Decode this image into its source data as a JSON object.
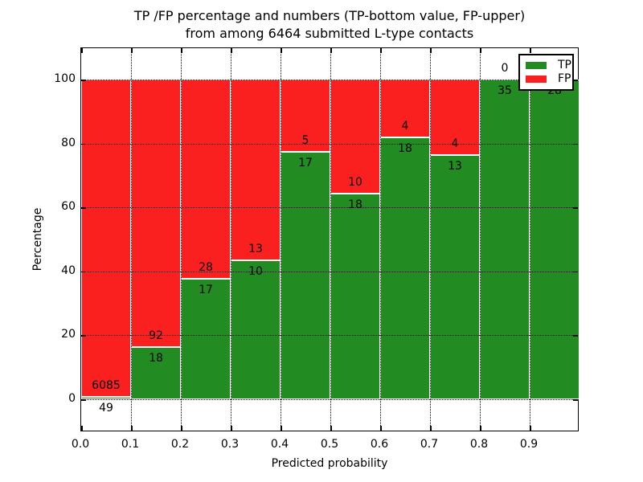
{
  "title": {
    "line1": "TP /FP percentage and numbers (TP-bottom value, FP-upper)",
    "line2": "from among 6464 submitted L-type contacts"
  },
  "axes": {
    "x_label": "Predicted probability",
    "y_label": "Percentage",
    "x_tick_labels": [
      "0.0",
      "0.1",
      "0.2",
      "0.3",
      "0.4",
      "0.5",
      "0.6",
      "0.7",
      "0.8",
      "0.9"
    ],
    "y_tick_labels": [
      "0",
      "20",
      "40",
      "60",
      "80",
      "100"
    ]
  },
  "legend": {
    "items": [
      {
        "label": "TP",
        "color": "#228b22"
      },
      {
        "label": "FP",
        "color": "#fa2020"
      }
    ]
  },
  "colors": {
    "tp_green": "#228b22",
    "fp_red": "#fa2020",
    "text": "#000000",
    "background": "#ffffff"
  },
  "chart_data": {
    "type": "bar",
    "stacked": true,
    "normalized_to_percent": true,
    "title": "TP /FP percentage and numbers (TP-bottom value, FP-upper) from among 6464 submitted L-type contacts",
    "xlabel": "Predicted probability",
    "ylabel": "Percentage",
    "total_contacts": 6464,
    "bin_edges": [
      0.0,
      0.1,
      0.2,
      0.3,
      0.4,
      0.5,
      0.6,
      0.7,
      0.8,
      0.9,
      1.0
    ],
    "x_ticks": [
      0.0,
      0.1,
      0.2,
      0.3,
      0.4,
      0.5,
      0.6,
      0.7,
      0.8,
      0.9
    ],
    "y_ticks": [
      0,
      20,
      40,
      60,
      80,
      100
    ],
    "xlim": [
      0,
      1
    ],
    "ylim": [
      -10,
      110
    ],
    "grid": true,
    "grid_linestyle": "dotted",
    "legend_position": "upper right",
    "bar_value_labels": "TP count below green top edge, FP count above it",
    "series": [
      {
        "name": "TP",
        "color": "#228b22",
        "counts": [
          49,
          18,
          17,
          10,
          17,
          18,
          18,
          13,
          35,
          28
        ],
        "percent_of_bin": [
          0.8,
          16.4,
          37.8,
          43.5,
          77.3,
          64.3,
          81.8,
          76.5,
          100.0,
          100.0
        ]
      },
      {
        "name": "FP",
        "color": "#fa2020",
        "counts": [
          6085,
          92,
          28,
          13,
          5,
          10,
          4,
          4,
          0,
          0
        ],
        "percent_of_bin": [
          99.2,
          83.6,
          62.2,
          56.5,
          22.7,
          35.7,
          18.2,
          23.5,
          0.0,
          0.0
        ]
      }
    ]
  }
}
